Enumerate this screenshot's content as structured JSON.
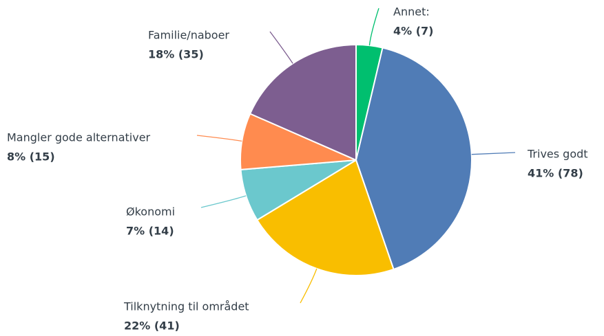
{
  "chart_data": {
    "type": "pie",
    "categories": [
      "Annet:",
      "Trives godt",
      "Tilknytning til området",
      "Økonomi",
      "Mangler gode alternativer",
      "Familie/naboer"
    ],
    "values": [
      7,
      78,
      41,
      14,
      15,
      35
    ],
    "value_labels": [
      "4% (7)",
      "41% (78)",
      "22% (41)",
      "7% (14)",
      "8% (15)",
      "18% (35)"
    ],
    "colors": [
      "#00bf6f",
      "#507cb6",
      "#f9be00",
      "#6bc8cd",
      "#ff8b4f",
      "#7d5e90"
    ]
  }
}
